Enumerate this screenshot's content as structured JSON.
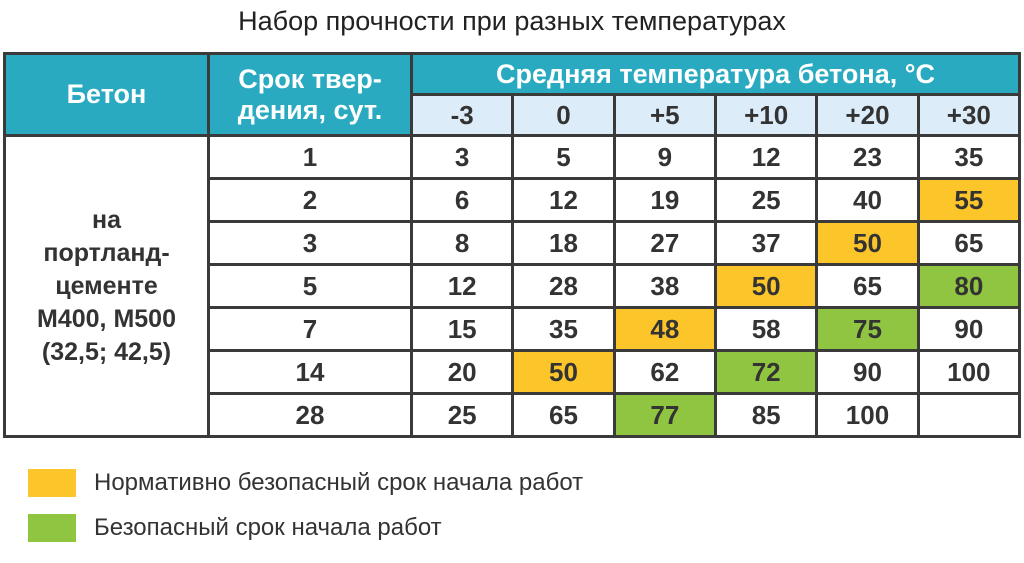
{
  "title": "Набор прочности при разных температурах",
  "header": {
    "concrete": "Бетон",
    "curing_line1": "Срок твер-",
    "curing_line2": "дения, сут.",
    "temperature": "Средняя температура бетона, °С",
    "temps": [
      "-3",
      "0",
      "+5",
      "+10",
      "+20",
      "+30"
    ]
  },
  "concrete_lines": [
    "на",
    "портланд-",
    "цементе",
    "М400, М500",
    "(32,5; 42,5)"
  ],
  "colors": {
    "header": "#2aaac0",
    "subheader": "#dcecf8",
    "normative_safe": "#fcc62b",
    "safe": "#8fc540"
  },
  "rows": [
    {
      "days": "1",
      "values": [
        "3",
        "5",
        "9",
        "12",
        "23",
        "35"
      ],
      "marks": [
        "",
        "",
        "",
        "",
        "",
        ""
      ]
    },
    {
      "days": "2",
      "values": [
        "6",
        "12",
        "19",
        "25",
        "40",
        "55"
      ],
      "marks": [
        "",
        "",
        "",
        "",
        "",
        "yellow"
      ]
    },
    {
      "days": "3",
      "values": [
        "8",
        "18",
        "27",
        "37",
        "50",
        "65"
      ],
      "marks": [
        "",
        "",
        "",
        "",
        "yellow",
        ""
      ]
    },
    {
      "days": "5",
      "values": [
        "12",
        "28",
        "38",
        "50",
        "65",
        "80"
      ],
      "marks": [
        "",
        "",
        "",
        "yellow",
        "",
        "green"
      ]
    },
    {
      "days": "7",
      "values": [
        "15",
        "35",
        "48",
        "58",
        "75",
        "90"
      ],
      "marks": [
        "",
        "",
        "yellow",
        "",
        "green",
        ""
      ]
    },
    {
      "days": "14",
      "values": [
        "20",
        "50",
        "62",
        "72",
        "90",
        "100"
      ],
      "marks": [
        "",
        "yellow",
        "",
        "green",
        "",
        ""
      ]
    },
    {
      "days": "28",
      "values": [
        "25",
        "65",
        "77",
        "85",
        "100",
        ""
      ],
      "marks": [
        "",
        "",
        "green",
        "",
        "",
        ""
      ]
    }
  ],
  "legend": [
    {
      "label": "Нормативно безопасный срок начала работ",
      "color": "#fcc62b"
    },
    {
      "label": "Безопасный срок начала работ",
      "color": "#8fc540"
    }
  ]
}
